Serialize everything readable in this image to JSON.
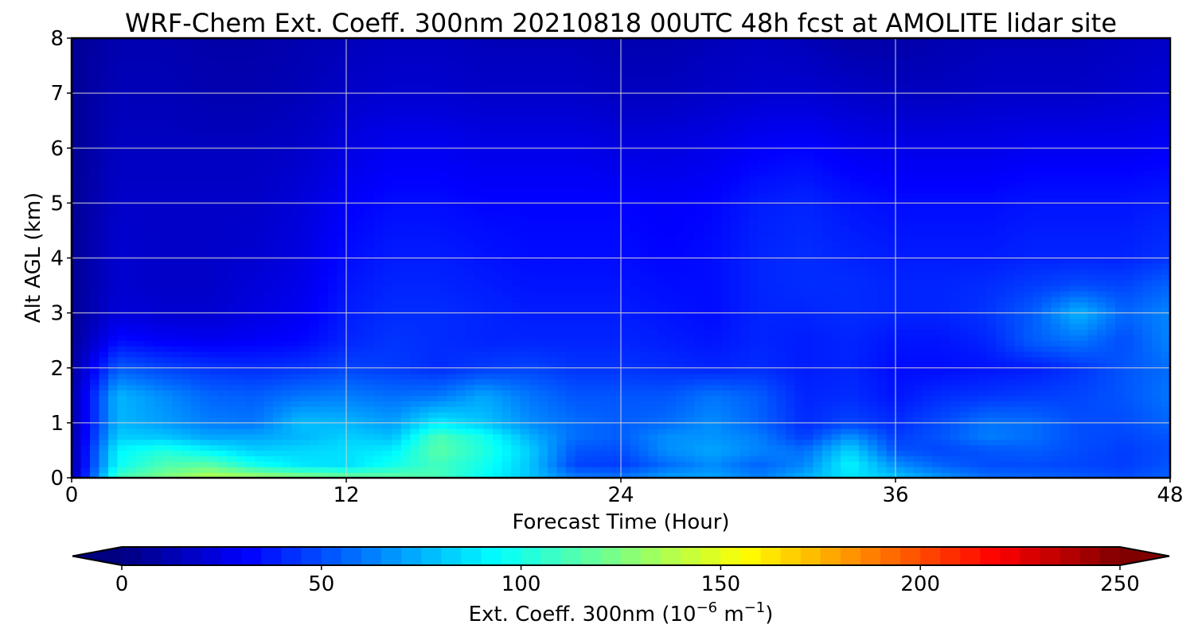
{
  "chart_data": {
    "type": "heatmap",
    "title": "WRF-Chem Ext. Coeff. 300nm  20210818 00UTC 48h fcst at AMOLITE lidar site",
    "xlabel": "Forecast Time (Hour)",
    "ylabel": "Alt AGL (km)",
    "xlim": [
      0,
      48
    ],
    "ylim": [
      0,
      8
    ],
    "xticks": [
      "0",
      "12",
      "24",
      "36",
      "48"
    ],
    "yticks": [
      "0",
      "1",
      "2",
      "3",
      "4",
      "5",
      "6",
      "7",
      "8"
    ],
    "grid": true,
    "colormap": "jet",
    "colorbar": {
      "orientation": "horizontal",
      "extend": "both",
      "range": [
        0,
        250
      ],
      "ticks": [
        "0",
        "50",
        "100",
        "150",
        "200",
        "250"
      ],
      "label_prefix": "Ext. Coeff. 300nm  (10",
      "label_exp1": "−6",
      "label_mid": " m",
      "label_exp2": "−1",
      "label_suffix": ")"
    },
    "x": [
      0,
      2,
      4,
      6,
      8,
      10,
      12,
      14,
      16,
      18,
      20,
      22,
      24,
      26,
      28,
      30,
      32,
      34,
      36,
      38,
      40,
      42,
      44,
      46,
      48
    ],
    "y": [
      0,
      0.25,
      0.5,
      0.75,
      1,
      1.5,
      2,
      2.5,
      3,
      3.5,
      4,
      5,
      6,
      7,
      8
    ],
    "z": [
      [
        10,
        110,
        125,
        140,
        135,
        128,
        122,
        118,
        112,
        95,
        80,
        62,
        60,
        70,
        72,
        62,
        74,
        88,
        80,
        68,
        58,
        56,
        54,
        50,
        55
      ],
      [
        10,
        95,
        112,
        115,
        98,
        88,
        86,
        98,
        110,
        98,
        80,
        48,
        46,
        58,
        66,
        56,
        64,
        92,
        66,
        55,
        50,
        50,
        48,
        46,
        52
      ],
      [
        10,
        92,
        102,
        92,
        82,
        84,
        86,
        90,
        116,
        102,
        82,
        52,
        50,
        66,
        72,
        64,
        58,
        84,
        52,
        48,
        52,
        54,
        50,
        46,
        50
      ],
      [
        10,
        82,
        80,
        72,
        72,
        76,
        82,
        78,
        112,
        98,
        75,
        58,
        54,
        66,
        68,
        62,
        46,
        68,
        46,
        52,
        62,
        58,
        50,
        48,
        52
      ],
      [
        10,
        76,
        70,
        62,
        60,
        78,
        76,
        70,
        90,
        80,
        66,
        58,
        54,
        58,
        66,
        56,
        42,
        48,
        42,
        50,
        60,
        58,
        50,
        50,
        56
      ],
      [
        10,
        76,
        66,
        56,
        54,
        60,
        62,
        58,
        60,
        72,
        60,
        52,
        52,
        52,
        60,
        54,
        40,
        42,
        36,
        42,
        44,
        46,
        48,
        52,
        60
      ],
      [
        8,
        54,
        48,
        44,
        42,
        44,
        48,
        46,
        42,
        46,
        48,
        44,
        44,
        42,
        40,
        42,
        38,
        40,
        34,
        34,
        36,
        38,
        44,
        52,
        58
      ],
      [
        6,
        34,
        30,
        28,
        30,
        32,
        40,
        44,
        42,
        40,
        40,
        40,
        40,
        38,
        36,
        40,
        38,
        40,
        36,
        36,
        40,
        54,
        60,
        50,
        64
      ],
      [
        5,
        22,
        20,
        20,
        24,
        28,
        38,
        42,
        42,
        40,
        38,
        38,
        38,
        36,
        34,
        40,
        40,
        42,
        40,
        40,
        44,
        54,
        76,
        56,
        64
      ],
      [
        5,
        20,
        18,
        18,
        22,
        26,
        36,
        40,
        40,
        38,
        36,
        36,
        36,
        34,
        34,
        40,
        42,
        42,
        40,
        40,
        42,
        46,
        50,
        48,
        56
      ],
      [
        5,
        20,
        18,
        18,
        20,
        24,
        34,
        38,
        38,
        36,
        34,
        34,
        34,
        32,
        34,
        40,
        42,
        40,
        38,
        38,
        38,
        40,
        40,
        40,
        44
      ],
      [
        5,
        18,
        18,
        18,
        18,
        22,
        30,
        34,
        34,
        32,
        32,
        32,
        32,
        30,
        32,
        38,
        40,
        36,
        34,
        34,
        34,
        36,
        36,
        36,
        38
      ],
      [
        5,
        16,
        16,
        16,
        16,
        18,
        24,
        28,
        28,
        26,
        26,
        26,
        24,
        24,
        26,
        30,
        32,
        28,
        26,
        26,
        26,
        28,
        28,
        28,
        30
      ],
      [
        5,
        14,
        14,
        12,
        12,
        14,
        18,
        20,
        20,
        18,
        18,
        18,
        16,
        16,
        18,
        20,
        20,
        18,
        16,
        16,
        18,
        18,
        18,
        20,
        22
      ],
      [
        5,
        12,
        12,
        10,
        10,
        12,
        14,
        16,
        16,
        14,
        14,
        14,
        12,
        12,
        14,
        16,
        14,
        10,
        10,
        12,
        14,
        14,
        14,
        16,
        18
      ]
    ]
  }
}
